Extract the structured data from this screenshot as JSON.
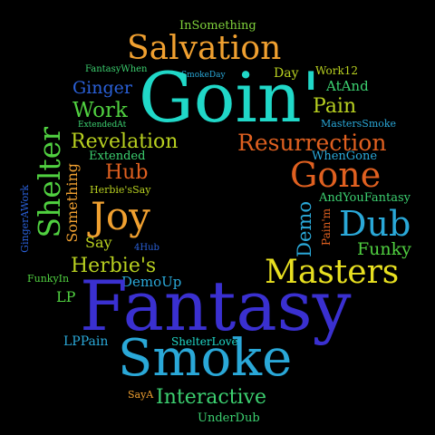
{
  "words": [
    {
      "text": "InSomething",
      "color": "#7fd13b"
    },
    {
      "text": "Salvation",
      "color": "#f0a030"
    },
    {
      "text": "FantasyWhen",
      "color": "#3cd070"
    },
    {
      "text": "SmokeDay",
      "color": "#2aa8d8"
    },
    {
      "text": "Day",
      "color": "#b8d020"
    },
    {
      "text": "Work12",
      "color": "#b8d020"
    },
    {
      "text": "Ginger",
      "color": "#2a60d8"
    },
    {
      "text": "Goin'",
      "color": "#20d8c8"
    },
    {
      "text": "AtAnd",
      "color": "#3cd070"
    },
    {
      "text": "Work",
      "color": "#50d040"
    },
    {
      "text": "Pain",
      "color": "#b8d020"
    },
    {
      "text": "ExtendedAt",
      "color": "#3cd070"
    },
    {
      "text": "MastersSmoke",
      "color": "#2aa8d8"
    },
    {
      "text": "Shelter",
      "color": "#50d040"
    },
    {
      "text": "Revelation",
      "color": "#b8d020"
    },
    {
      "text": "Resurrection",
      "color": "#e06020"
    },
    {
      "text": "Extended",
      "color": "#3cd070"
    },
    {
      "text": "WhenGone",
      "color": "#2aa8d8"
    },
    {
      "text": "Hub",
      "color": "#e06020"
    },
    {
      "text": "Gone",
      "color": "#e06020"
    },
    {
      "text": "Herbie'sSay",
      "color": "#b8d020"
    },
    {
      "text": "AndYouFantasy",
      "color": "#3cd070"
    },
    {
      "text": "GingerAWork",
      "color": "#2a60d8"
    },
    {
      "text": "Something",
      "color": "#f0a030"
    },
    {
      "text": "Joy",
      "color": "#f0a030"
    },
    {
      "text": "Demo",
      "color": "#2aa8d8"
    },
    {
      "text": "Pain'm",
      "color": "#e06020"
    },
    {
      "text": "Dub",
      "color": "#2aa8d8"
    },
    {
      "text": "Say",
      "color": "#b8d020"
    },
    {
      "text": "Funky",
      "color": "#50d040"
    },
    {
      "text": "4Hub",
      "color": "#2a60d8"
    },
    {
      "text": "Herbie's",
      "color": "#b8d020"
    },
    {
      "text": "Masters",
      "color": "#e8e020"
    },
    {
      "text": "FunkyIn",
      "color": "#50d040"
    },
    {
      "text": "DemoUp",
      "color": "#2aa8d8"
    },
    {
      "text": "LP",
      "color": "#50d040"
    },
    {
      "text": "Fantasy",
      "color": "#3a30d0"
    },
    {
      "text": "LPPain",
      "color": "#2aa8d8"
    },
    {
      "text": "ShelterLove",
      "color": "#20d8c8"
    },
    {
      "text": "Smoke",
      "color": "#2aa8d8"
    },
    {
      "text": "SayA",
      "color": "#f0a030"
    },
    {
      "text": "Interactive",
      "color": "#3cd070"
    },
    {
      "text": "UnderDub",
      "color": "#3cd070"
    }
  ]
}
